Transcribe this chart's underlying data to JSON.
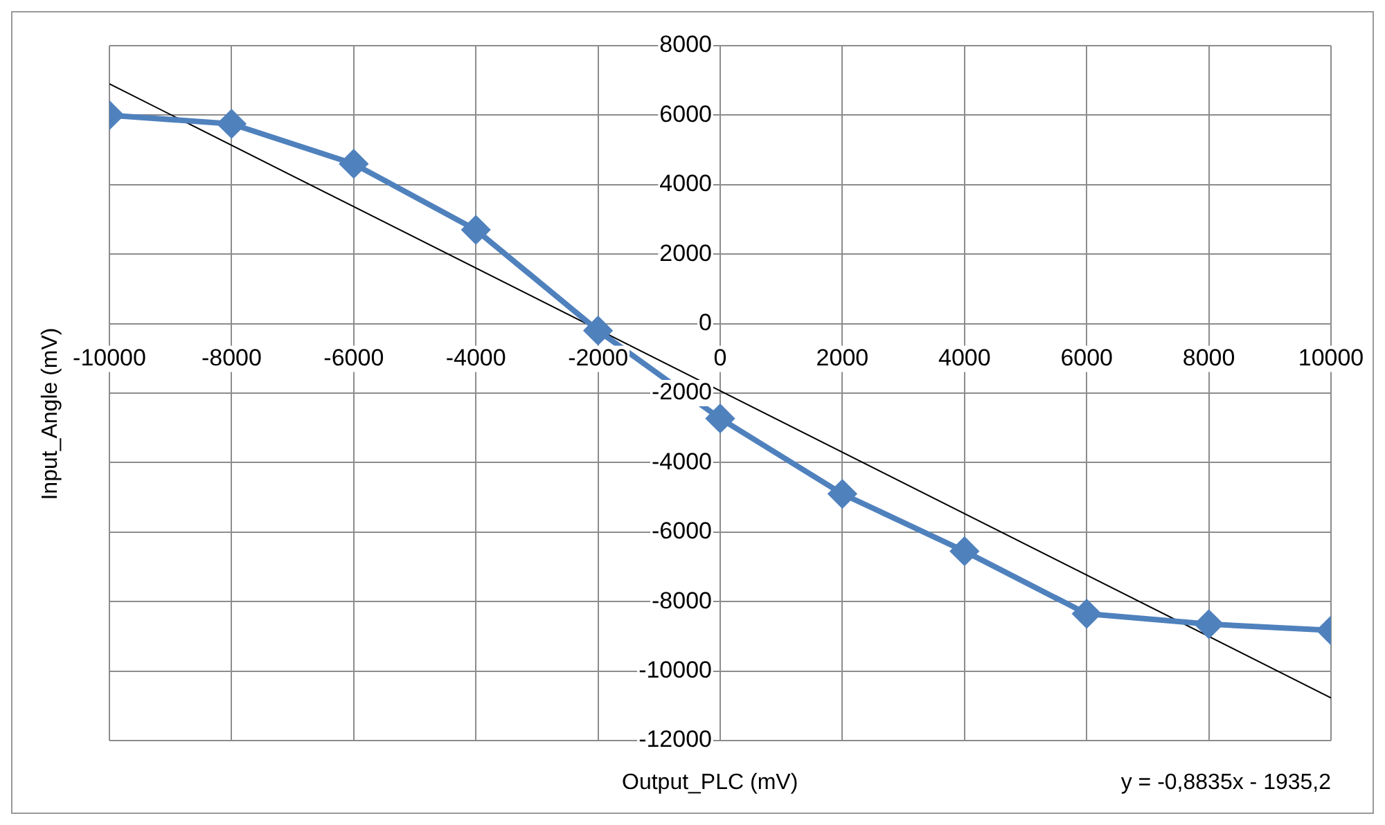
{
  "chart_data": {
    "type": "line",
    "xlabel": "Output_PLC (mV)",
    "ylabel": "Input_Angle (mV)",
    "annotations": [
      "y = -0,8835x - 1935,2"
    ],
    "x": [
      -10000,
      -8000,
      -6000,
      -4000,
      -2000,
      0,
      2000,
      4000,
      6000,
      8000,
      10000
    ],
    "series": [
      {
        "color": "#4f81bd",
        "marker": "diamond",
        "values": [
          6000,
          5750,
          4600,
          2700,
          -200,
          -2730,
          -4900,
          -6550,
          -8350,
          -8650,
          -8830
        ]
      },
      {
        "type": "line",
        "color": "#000000",
        "marker": "none",
        "x": [
          -10000,
          10000
        ],
        "values": [
          6900,
          -10770
        ]
      }
    ],
    "xlim": [
      -10000,
      10000
    ],
    "xticks": [
      -10000,
      -8000,
      -6000,
      -4000,
      -2000,
      0,
      2000,
      4000,
      6000,
      8000,
      10000
    ],
    "ylim": [
      -12000,
      8000
    ],
    "yticks": [
      -12000,
      -10000,
      -8000,
      -6000,
      -4000,
      -2000,
      0,
      2000,
      4000,
      6000,
      8000
    ],
    "grid": true,
    "legend": false
  }
}
